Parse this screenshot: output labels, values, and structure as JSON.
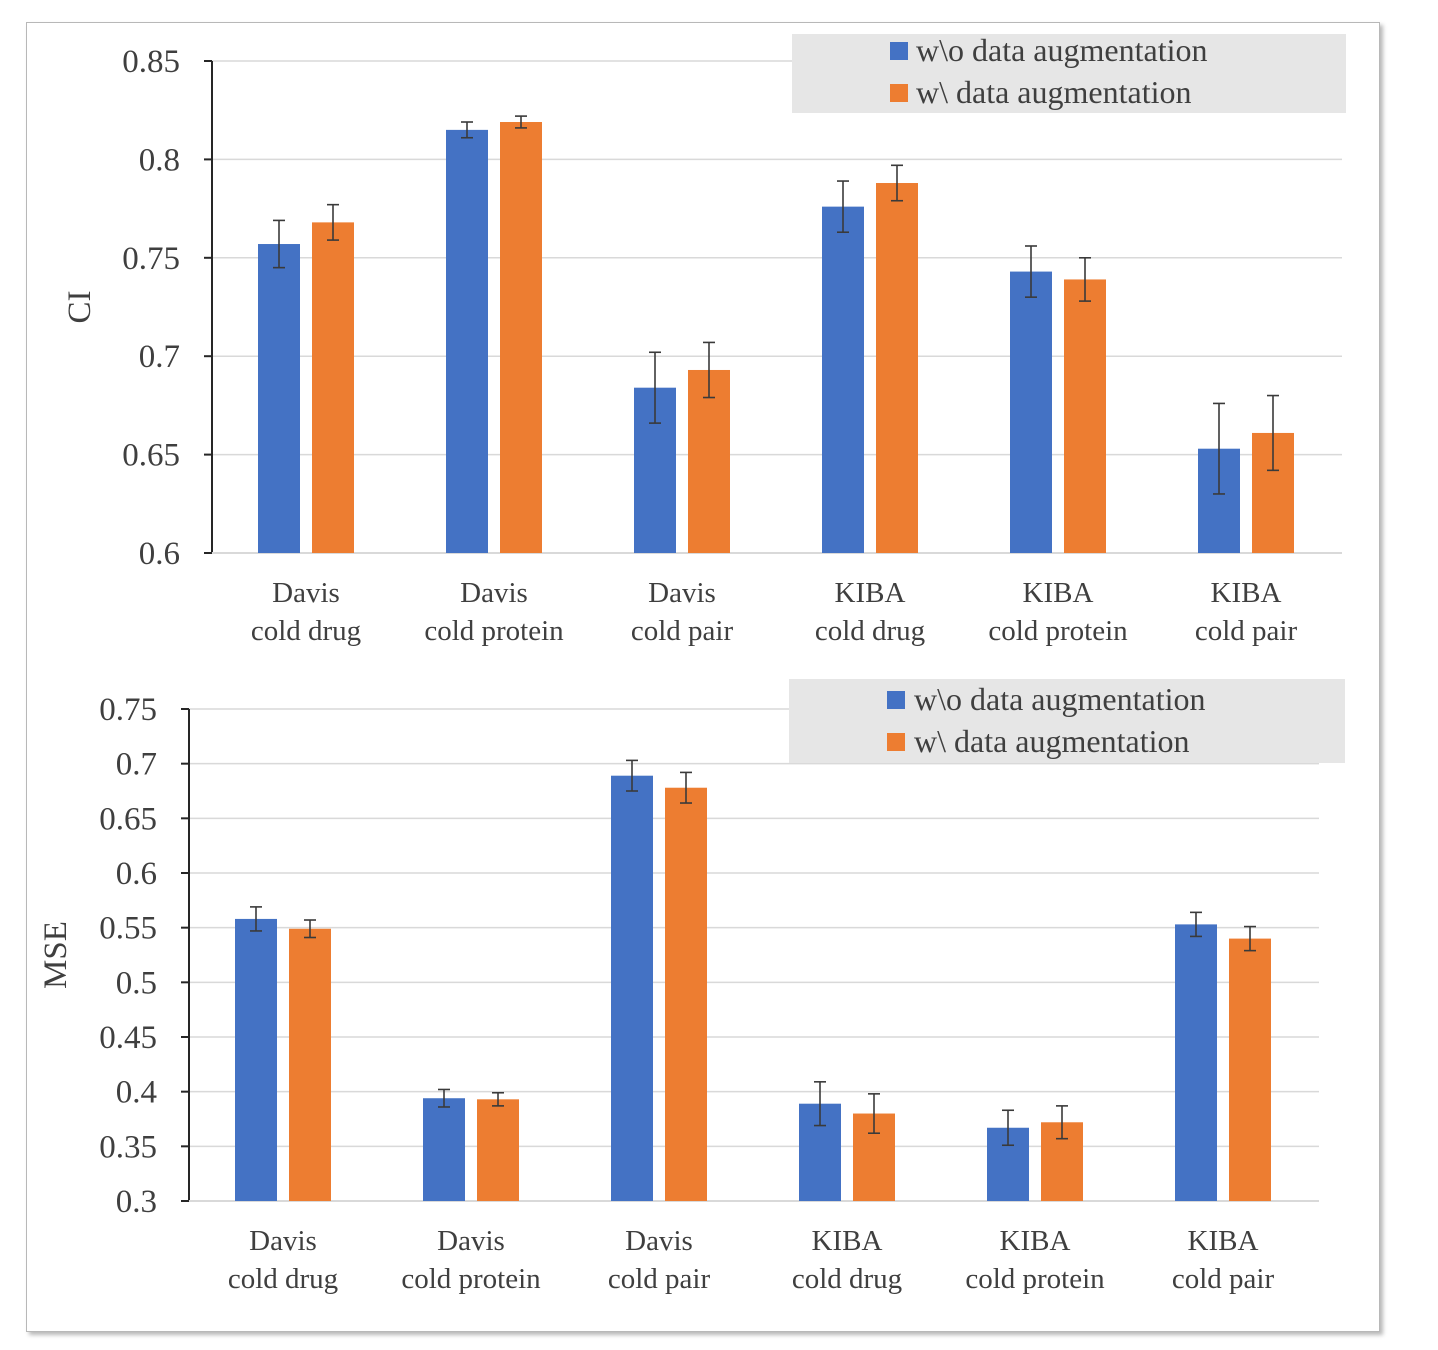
{
  "chart_data": [
    {
      "type": "bar",
      "ylabel": "CI",
      "xlabel": "",
      "title": "",
      "ylim": [
        0.6,
        0.85
      ],
      "yticks": [
        "0.6",
        "0.65",
        "0.7",
        "0.75",
        "0.8",
        "0.85"
      ],
      "categories": [
        [
          "Davis",
          "cold drug"
        ],
        [
          "Davis",
          "cold protein"
        ],
        [
          "Davis",
          "cold pair"
        ],
        [
          "KIBA",
          "cold drug"
        ],
        [
          "KIBA",
          "cold protein"
        ],
        [
          "KIBA",
          "cold pair"
        ]
      ],
      "grid": true,
      "legend_position": "top-right",
      "series": [
        {
          "name": "w\\o data augmentation",
          "color": "#4472C4",
          "values": [
            0.757,
            0.815,
            0.684,
            0.776,
            0.743,
            0.653
          ],
          "errors": [
            0.012,
            0.004,
            0.018,
            0.013,
            0.013,
            0.023
          ]
        },
        {
          "name": "w\\ data augmentation",
          "color": "#ED7D31",
          "values": [
            0.768,
            0.819,
            0.693,
            0.788,
            0.739,
            0.661
          ],
          "errors": [
            0.009,
            0.003,
            0.014,
            0.009,
            0.011,
            0.019
          ]
        }
      ]
    },
    {
      "type": "bar",
      "ylabel": "MSE",
      "xlabel": "",
      "title": "",
      "ylim": [
        0.3,
        0.75
      ],
      "yticks": [
        "0.3",
        "0.35",
        "0.4",
        "0.45",
        "0.5",
        "0.55",
        "0.6",
        "0.65",
        "0.7",
        "0.75"
      ],
      "categories": [
        [
          "Davis",
          "cold drug"
        ],
        [
          "Davis",
          "cold protein"
        ],
        [
          "Davis",
          "cold pair"
        ],
        [
          "KIBA",
          "cold drug"
        ],
        [
          "KIBA",
          "cold protein"
        ],
        [
          "KIBA",
          "cold pair"
        ]
      ],
      "grid": true,
      "legend_position": "top-right",
      "series": [
        {
          "name": "w\\o data augmentation",
          "color": "#4472C4",
          "values": [
            0.558,
            0.394,
            0.689,
            0.389,
            0.367,
            0.553
          ],
          "errors": [
            0.011,
            0.008,
            0.014,
            0.02,
            0.016,
            0.011
          ]
        },
        {
          "name": "w\\ data augmentation",
          "color": "#ED7D31",
          "values": [
            0.549,
            0.393,
            0.678,
            0.38,
            0.372,
            0.54
          ],
          "errors": [
            0.008,
            0.006,
            0.014,
            0.018,
            0.015,
            0.011
          ]
        }
      ]
    }
  ]
}
